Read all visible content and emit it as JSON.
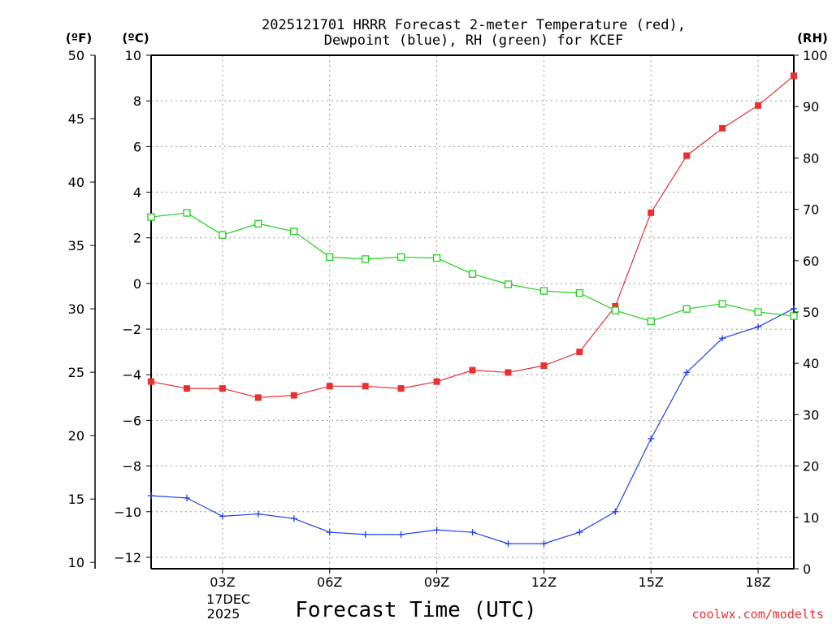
{
  "chart_data": {
    "type": "line",
    "title_line1": "2025121701 HRRR Forecast 2-meter Temperature (red),",
    "title_line2": "Dewpoint (blue), RH (green) for KCEF",
    "xlabel": "Forecast Time (UTC)",
    "date_label_day": "17DEC",
    "date_label_year": "2025",
    "credit": "coolwx.com/modelts",
    "unit_left_f": "(ºF)",
    "unit_left_c": "(ºC)",
    "unit_right": "(RH)",
    "x_hours": [
      1,
      2,
      3,
      4,
      5,
      6,
      7,
      8,
      9,
      10,
      11,
      12,
      13,
      14,
      15,
      16,
      17,
      18,
      19
    ],
    "xlim": [
      1,
      19
    ],
    "x_ticks": [
      {
        "hour": 3,
        "label": "03Z"
      },
      {
        "hour": 6,
        "label": "06Z"
      },
      {
        "hour": 9,
        "label": "09Z"
      },
      {
        "hour": 12,
        "label": "12Z"
      },
      {
        "hour": 15,
        "label": "15Z"
      },
      {
        "hour": 18,
        "label": "18Z"
      }
    ],
    "ylim_c": [
      -12.5,
      10
    ],
    "ylim_f": [
      9.5,
      50
    ],
    "ylim_rh": [
      0,
      100
    ],
    "y_ticks_c": [
      "10",
      "8",
      "6",
      "4",
      "2",
      "0",
      "−2",
      "−4",
      "−6",
      "−8",
      "−10",
      "−12"
    ],
    "y_ticks_f": [
      "50",
      "45",
      "40",
      "35",
      "30",
      "25",
      "20",
      "15",
      "10"
    ],
    "y_ticks_rh": [
      "100",
      "90",
      "80",
      "70",
      "60",
      "50",
      "40",
      "30",
      "20",
      "10",
      "0"
    ],
    "colors": {
      "temperature": "#e83030",
      "dewpoint": "#2040e8",
      "rh": "#20d020",
      "credit": "#e83030"
    },
    "series": [
      {
        "name": "Temperature (°C)",
        "axis": "c",
        "marker": "filled-square",
        "values": [
          -4.3,
          -4.6,
          -4.6,
          -5.0,
          -4.9,
          -4.5,
          -4.5,
          -4.6,
          -4.3,
          -3.8,
          -3.9,
          -3.6,
          -3.0,
          -1.0,
          3.1,
          5.6,
          6.8,
          7.8,
          9.1
        ]
      },
      {
        "name": "Dewpoint (°C)",
        "axis": "c",
        "marker": "plus",
        "values": [
          -9.3,
          -9.4,
          -10.2,
          -10.1,
          -10.3,
          -10.9,
          -11.0,
          -11.0,
          -10.8,
          -10.9,
          -11.4,
          -11.4,
          -10.9,
          -10.0,
          -6.8,
          -3.9,
          -2.4,
          -1.9,
          -1.1
        ]
      },
      {
        "name": "RH (%)",
        "axis": "rh",
        "marker": "open-square",
        "values": [
          68.5,
          69.3,
          65.0,
          67.2,
          65.7,
          60.7,
          60.3,
          60.7,
          60.5,
          57.4,
          55.4,
          54.1,
          53.7,
          50.3,
          48.2,
          50.6,
          51.6,
          50.0,
          49.2
        ]
      }
    ]
  }
}
